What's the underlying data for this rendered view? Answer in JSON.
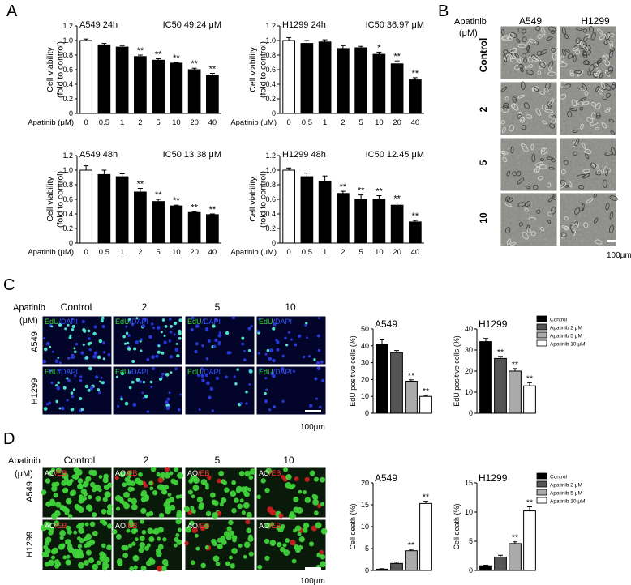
{
  "figure": {
    "panel_labels": [
      "A",
      "B",
      "C",
      "D"
    ],
    "x_axis_prefix": "Apatinib (μM)",
    "sig_double": "**",
    "sig_single": "*",
    "scale_text": "100μm"
  },
  "chart_data": [
    {
      "type": "bar",
      "title": "A549 24h",
      "ic50": "IC50 49.24 μM",
      "ylabel": "Cell viability (fold to control)",
      "categories": [
        "0",
        "0.5",
        "1",
        "2",
        "5",
        "10",
        "20",
        "40"
      ],
      "values": [
        1.0,
        0.94,
        0.91,
        0.78,
        0.73,
        0.69,
        0.6,
        0.52
      ],
      "errors": [
        0.02,
        0.02,
        0.02,
        0.02,
        0.02,
        0.01,
        0.02,
        0.03
      ],
      "significance": [
        "",
        "",
        "",
        "**",
        "**",
        "**",
        "**",
        "**"
      ],
      "ylim": [
        0,
        1.2
      ],
      "yticks": [
        "0",
        "0.2",
        "0.4",
        "0.6",
        "0.8",
        "1.0",
        "1.2"
      ]
    },
    {
      "type": "bar",
      "title": "H1299 24h",
      "ic50": "IC50 36.97 μM",
      "ylabel": "Cell viability (fold to control)",
      "categories": [
        "0",
        "0.5",
        "1",
        "2",
        "5",
        "10",
        "20",
        "40"
      ],
      "values": [
        1.0,
        0.96,
        0.98,
        0.89,
        0.9,
        0.81,
        0.68,
        0.46
      ],
      "errors": [
        0.04,
        0.04,
        0.03,
        0.04,
        0.02,
        0.03,
        0.04,
        0.03
      ],
      "significance": [
        "",
        "",
        "",
        "",
        "",
        "*",
        "**",
        "**"
      ],
      "ylim": [
        0,
        1.2
      ],
      "yticks": [
        "0",
        "0.2",
        "0.4",
        "0.6",
        "0.8",
        "1.0",
        "1.2"
      ]
    },
    {
      "type": "bar",
      "title": "A549 48h",
      "ic50": "IC50 13.38 μM",
      "ylabel": "Cell viability (fold to control)",
      "categories": [
        "0",
        "0.5",
        "1",
        "2",
        "5",
        "10",
        "20",
        "40"
      ],
      "values": [
        1.0,
        0.94,
        0.91,
        0.7,
        0.57,
        0.51,
        0.42,
        0.39
      ],
      "errors": [
        0.06,
        0.06,
        0.04,
        0.05,
        0.03,
        0.01,
        0.01,
        0.01
      ],
      "significance": [
        "",
        "",
        "",
        "**",
        "**",
        "**",
        "**",
        "**"
      ],
      "ylim": [
        0,
        1.2
      ],
      "yticks": [
        "0",
        "0.2",
        "0.4",
        "0.6",
        "0.8",
        "1.0",
        "1.2"
      ]
    },
    {
      "type": "bar",
      "title": "H1299 48h",
      "ic50": "IC50 12.45 μM",
      "ylabel": "Cell viability (fold to control)",
      "categories": [
        "0",
        "0.5",
        "1",
        "2",
        "5",
        "10",
        "20",
        "40"
      ],
      "values": [
        1.0,
        0.91,
        0.84,
        0.68,
        0.6,
        0.6,
        0.52,
        0.29
      ],
      "errors": [
        0.03,
        0.05,
        0.08,
        0.03,
        0.06,
        0.05,
        0.03,
        0.02
      ],
      "significance": [
        "",
        "",
        "",
        "**",
        "**",
        "**",
        "**",
        "**"
      ],
      "ylim": [
        0,
        1.2
      ],
      "yticks": [
        "0",
        "0.2",
        "0.4",
        "0.6",
        "0.8",
        "1.0",
        "1.2"
      ]
    },
    {
      "type": "bar",
      "title": "A549",
      "ylabel": "EdU positive cells (%)",
      "categories": [
        "Control",
        "Apatinib 2 μM",
        "Apatinib 5 μM",
        "Apatinib 10 μM"
      ],
      "values": [
        41,
        36,
        19,
        10
      ],
      "errors": [
        2.5,
        1.2,
        0.8,
        0.6
      ],
      "significance": [
        "",
        "",
        "**",
        "**"
      ],
      "ylim": [
        0,
        50
      ],
      "yticks": [
        "0",
        "10",
        "20",
        "30",
        "40",
        "50"
      ],
      "colors": [
        "#000000",
        "#555555",
        "#aaaaaa",
        "#ffffff"
      ]
    },
    {
      "type": "bar",
      "title": "H1299",
      "ylabel": "EdU positive cells (%)",
      "categories": [
        "Control",
        "Apatinib 2 μM",
        "Apatinib 5 μM",
        "Apatinib 10 μM"
      ],
      "values": [
        34,
        26,
        20,
        13
      ],
      "errors": [
        1.5,
        1.0,
        1.2,
        1.5
      ],
      "significance": [
        "",
        "**",
        "**",
        "**"
      ],
      "ylim": [
        0,
        40
      ],
      "yticks": [
        "0",
        "10",
        "20",
        "30",
        "40"
      ],
      "colors": [
        "#000000",
        "#555555",
        "#aaaaaa",
        "#ffffff"
      ]
    },
    {
      "type": "bar",
      "title": "A549",
      "ylabel": "Cell death (%)",
      "categories": [
        "Control",
        "Apatinib 2 μM",
        "Apatinib 5 μM",
        "Apatinib 10 μM"
      ],
      "values": [
        0.3,
        1.6,
        4.5,
        15.3
      ],
      "errors": [
        0.1,
        0.3,
        0.3,
        0.5
      ],
      "significance": [
        "",
        "",
        "**",
        "**"
      ],
      "ylim": [
        0,
        20
      ],
      "yticks": [
        "0",
        "5",
        "10",
        "15",
        "20"
      ],
      "colors": [
        "#000000",
        "#555555",
        "#aaaaaa",
        "#ffffff"
      ]
    },
    {
      "type": "bar",
      "title": "H1299",
      "ylabel": "Cell death (%)",
      "categories": [
        "Control",
        "Apatinib 2 μM",
        "Apatinib 5 μM",
        "Apatinib 10 μM"
      ],
      "values": [
        0.8,
        2.3,
        4.6,
        10.2
      ],
      "errors": [
        0.1,
        0.3,
        0.3,
        0.7
      ],
      "significance": [
        "",
        "",
        "**",
        "**"
      ],
      "ylim": [
        0,
        15
      ],
      "yticks": [
        "0",
        "5",
        "10",
        "15"
      ],
      "colors": [
        "#000000",
        "#555555",
        "#aaaaaa",
        "#ffffff"
      ]
    }
  ],
  "panel_b": {
    "header": "Apatinib",
    "unit": "(μM)",
    "cols": [
      "A549",
      "H1299"
    ],
    "rows": [
      "Control",
      "2",
      "5",
      "10"
    ],
    "scale": "100μm"
  },
  "panel_c": {
    "header": "Apatinib",
    "unit": "(μM)",
    "cols": [
      "Control",
      "2",
      "5",
      "10"
    ],
    "rows": [
      "A549",
      "H1299"
    ],
    "stain_a": "EdU",
    "stain_b": "/DAPI",
    "stain_a_color": "#33dd33",
    "stain_b_color": "#3355ff",
    "scale": "100μm"
  },
  "panel_d": {
    "header": "Apatinib",
    "unit": "(μM)",
    "cols": [
      "Control",
      "2",
      "5",
      "10"
    ],
    "rows": [
      "A549",
      "H1299"
    ],
    "stain_a": "AO",
    "stain_b": "/EB",
    "stain_a_color": "#ffffff",
    "stain_b_color": "#ff3333",
    "scale": "100μm"
  }
}
